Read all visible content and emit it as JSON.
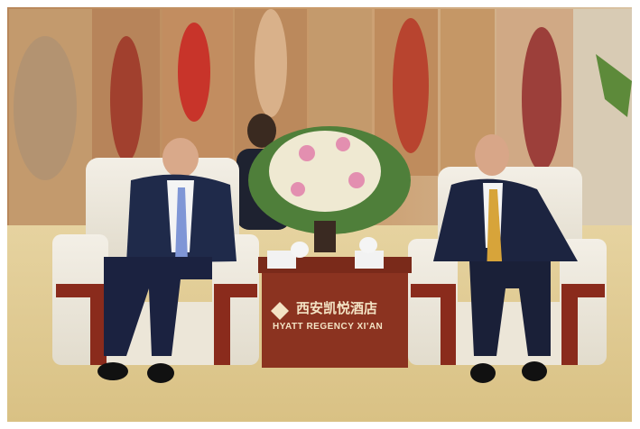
{
  "sign": {
    "chinese": "西安凯悦酒店",
    "english": "HYATT REGENCY XI'AN"
  }
}
